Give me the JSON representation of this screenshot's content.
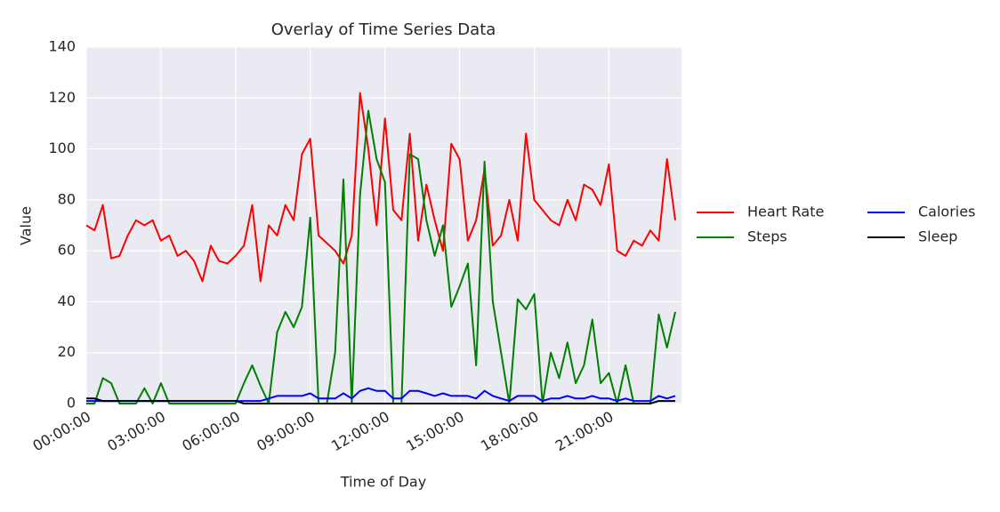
{
  "chart_data": {
    "type": "line",
    "title": "Overlay of Time Series Data",
    "x_label": "Time of Day",
    "y_label": "Value",
    "x": [
      "00:00:00",
      "00:20:00",
      "00:40:00",
      "01:00:00",
      "01:20:00",
      "01:40:00",
      "02:00:00",
      "02:20:00",
      "02:40:00",
      "03:00:00",
      "03:20:00",
      "03:40:00",
      "04:00:00",
      "04:20:00",
      "04:40:00",
      "05:00:00",
      "05:20:00",
      "05:40:00",
      "06:00:00",
      "06:20:00",
      "06:40:00",
      "07:00:00",
      "07:20:00",
      "07:40:00",
      "08:00:00",
      "08:20:00",
      "08:40:00",
      "09:00:00",
      "09:20:00",
      "09:40:00",
      "10:00:00",
      "10:20:00",
      "10:40:00",
      "11:00:00",
      "11:20:00",
      "11:40:00",
      "12:00:00",
      "12:20:00",
      "12:40:00",
      "13:00:00",
      "13:20:00",
      "13:40:00",
      "14:00:00",
      "14:20:00",
      "14:40:00",
      "15:00:00",
      "15:20:00",
      "15:40:00",
      "16:00:00",
      "16:20:00",
      "16:40:00",
      "17:00:00",
      "17:20:00",
      "17:40:00",
      "18:00:00",
      "18:20:00",
      "18:40:00",
      "19:00:00",
      "19:20:00",
      "19:40:00",
      "20:00:00",
      "20:20:00",
      "20:40:00",
      "21:00:00",
      "21:20:00",
      "21:40:00",
      "22:00:00",
      "22:20:00",
      "22:40:00",
      "23:00:00",
      "23:20:00",
      "23:40:00"
    ],
    "series": [
      {
        "name": "Heart Rate",
        "color": "#ff0000",
        "values": [
          70,
          68,
          78,
          57,
          58,
          66,
          72,
          70,
          72,
          64,
          66,
          58,
          60,
          56,
          48,
          62,
          56,
          55,
          58,
          62,
          78,
          48,
          70,
          66,
          78,
          72,
          98,
          104,
          66,
          63,
          60,
          55,
          66,
          122,
          100,
          70,
          112,
          76,
          72,
          106,
          64,
          86,
          72,
          60,
          102,
          96,
          64,
          72,
          92,
          62,
          66,
          80,
          64,
          106,
          80,
          76,
          72,
          70,
          80,
          72,
          86,
          84,
          78,
          94,
          60,
          58,
          64,
          62,
          68,
          64,
          96,
          72
        ]
      },
      {
        "name": "Steps",
        "color": "#008000",
        "values": [
          0,
          0,
          10,
          8,
          0,
          0,
          0,
          6,
          0,
          8,
          0,
          0,
          0,
          0,
          0,
          0,
          0,
          0,
          0,
          8,
          15,
          7,
          0,
          28,
          36,
          30,
          38,
          73,
          0,
          0,
          20,
          88,
          0,
          82,
          115,
          96,
          87,
          0,
          0,
          98,
          96,
          72,
          58,
          70,
          38,
          46,
          55,
          15,
          95,
          40,
          20,
          0,
          41,
          37,
          43,
          0,
          20,
          10,
          24,
          8,
          15,
          33,
          8,
          12,
          0,
          15,
          0,
          0,
          0,
          35,
          22,
          36
        ]
      },
      {
        "name": "Calories",
        "color": "#0000ff",
        "values": [
          1,
          1,
          1,
          1,
          1,
          1,
          1,
          1,
          1,
          1,
          1,
          1,
          1,
          1,
          1,
          1,
          1,
          1,
          1,
          1,
          1,
          1,
          2,
          3,
          3,
          3,
          3,
          4,
          2,
          2,
          2,
          4,
          2,
          5,
          6,
          5,
          5,
          2,
          2,
          5,
          5,
          4,
          3,
          4,
          3,
          3,
          3,
          2,
          5,
          3,
          2,
          1,
          3,
          3,
          3,
          1,
          2,
          2,
          3,
          2,
          2,
          3,
          2,
          2,
          1,
          2,
          1,
          1,
          1,
          3,
          2,
          3
        ]
      },
      {
        "name": "Sleep",
        "color": "#000000",
        "values": [
          2,
          2,
          1,
          1,
          1,
          1,
          1,
          1,
          1,
          1,
          1,
          1,
          1,
          1,
          1,
          1,
          1,
          1,
          1,
          0,
          0,
          0,
          0,
          0,
          0,
          0,
          0,
          0,
          0,
          0,
          0,
          0,
          0,
          0,
          0,
          0,
          0,
          0,
          0,
          0,
          0,
          0,
          0,
          0,
          0,
          0,
          0,
          0,
          0,
          0,
          0,
          0,
          0,
          0,
          0,
          0,
          0,
          0,
          0,
          0,
          0,
          0,
          0,
          0,
          0,
          0,
          0,
          0,
          0,
          1,
          1,
          1
        ]
      }
    ],
    "xlim": [
      "00:00:00",
      "23:55:00"
    ],
    "xticks": [
      "00:00:00",
      "03:00:00",
      "06:00:00",
      "09:00:00",
      "12:00:00",
      "15:00:00",
      "18:00:00",
      "21:00:00"
    ],
    "ylim": [
      0,
      140
    ],
    "yticks": [
      0,
      20,
      40,
      60,
      80,
      100,
      120,
      140
    ],
    "grid": true,
    "legend": "right"
  }
}
